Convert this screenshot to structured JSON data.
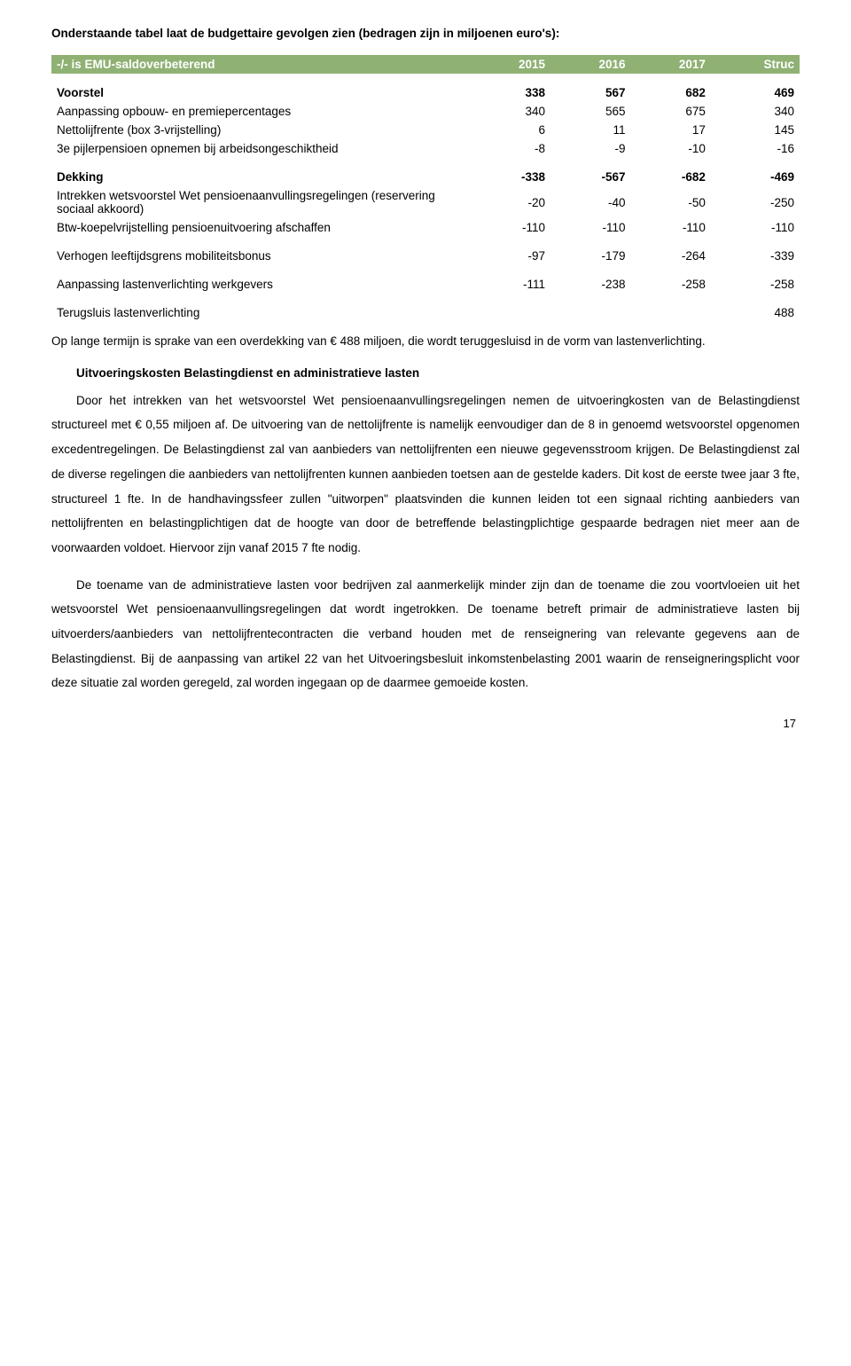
{
  "intro": "Onderstaande tabel laat de budgettaire gevolgen zien (bedragen zijn in miljoenen euro's):",
  "table": {
    "headers": [
      "-/- is EMU-saldoverbeterend",
      "2015",
      "2016",
      "2017",
      "Struc"
    ],
    "rows": [
      {
        "label": "Voorstel",
        "cells": [
          "338",
          "567",
          "682",
          "469"
        ],
        "cls": "bold sep-above"
      },
      {
        "label": "Aanpassing opbouw- en premiepercentages",
        "cells": [
          "340",
          "565",
          "675",
          "340"
        ],
        "cls": "indent"
      },
      {
        "label": "Nettolijfrente (box 3-vrijstelling)",
        "cells": [
          "6",
          "11",
          "17",
          "145"
        ],
        "cls": "indent"
      },
      {
        "label": "3e pijlerpensioen opnemen bij arbeidsongeschiktheid",
        "cells": [
          "-8",
          "-9",
          "-10",
          "-16"
        ],
        "cls": "indent"
      },
      {
        "label": "Dekking",
        "cells": [
          "-338",
          "-567",
          "-682",
          "-469"
        ],
        "cls": "bold sep-above"
      },
      {
        "label": "Intrekken wetsvoorstel Wet pensioenaanvullingsregelingen (reservering sociaal akkoord)",
        "cells": [
          "-20",
          "-40",
          "-50",
          "-250"
        ],
        "cls": "indent"
      },
      {
        "label": "Btw-koepelvrijstelling pensioenuitvoering afschaffen",
        "cells": [
          "-110",
          "-110",
          "-110",
          "-110"
        ],
        "cls": "indent"
      },
      {
        "label": "Verhogen leeftijdsgrens mobiliteitsbonus",
        "cells": [
          "-97",
          "-179",
          "-264",
          "-339"
        ],
        "cls": "indent sep-above"
      },
      {
        "label": "Aanpassing lastenverlichting werkgevers",
        "cells": [
          "-111",
          "-238",
          "-258",
          "-258"
        ],
        "cls": "indent sep-above"
      },
      {
        "label": "Terugsluis lastenverlichting",
        "cells": [
          "",
          "",
          "",
          "488"
        ],
        "cls": "indent sep-above"
      }
    ]
  },
  "afterTable": "Op lange termijn is sprake van een overdekking van € 488 miljoen, die wordt teruggesluisd in de vorm van lastenverlichting.",
  "sectionTitle": "Uitvoeringskosten Belastingdienst en administratieve lasten",
  "para1": "Door het intrekken van het wetsvoorstel Wet pensioenaanvullingsregelingen nemen de uitvoeringkosten van de Belastingdienst structureel met € 0,55 miljoen af. De uitvoering van de nettolijfrente is namelijk eenvoudiger dan de 8 in genoemd wetsvoorstel opgenomen excedentregelingen. De Belastingdienst zal van aanbieders van nettolijfrenten een nieuwe gegevensstroom krijgen. De Belastingdienst zal de diverse regelingen die aanbieders van nettolijfrenten kunnen aanbieden toetsen aan de gestelde kaders. Dit kost de eerste twee jaar 3 fte, structureel 1 fte. In de handhavingssfeer zullen \"uitworpen\" plaatsvinden die kunnen leiden tot een signaal richting aanbieders van nettolijfrenten en belastingplichtigen dat de hoogte van door de betreffende belastingplichtige gespaarde bedragen niet meer aan de voorwaarden voldoet. Hiervoor zijn vanaf 2015 7 fte nodig.",
  "para2": "De toename van de administratieve lasten voor bedrijven zal aanmerkelijk minder zijn dan de toename die zou voortvloeien uit het wetsvoorstel Wet pensioenaanvullingsregelingen dat wordt ingetrokken. De toename betreft primair de administratieve lasten bij uitvoerders/aanbieders van nettolijfrentecontracten die verband houden met de renseignering van relevante gegevens aan de Belastingdienst. Bij de aanpassing van artikel 22 van het Uitvoeringsbesluit inkomstenbelasting 2001 waarin de renseigneringsplicht voor deze situatie zal worden geregeld, zal worden ingegaan op de daarmee gemoeide kosten.",
  "pageNumber": "17",
  "colors": {
    "headerBg": "#8fb173",
    "headerFg": "#ffffff"
  }
}
